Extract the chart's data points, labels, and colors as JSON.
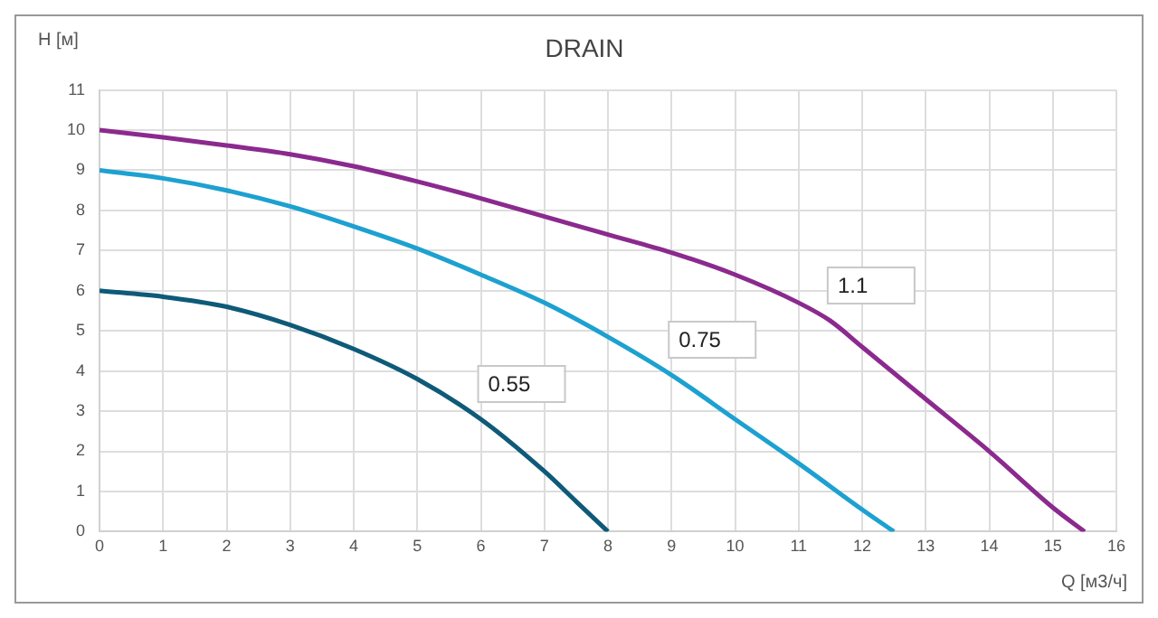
{
  "chart_data": {
    "type": "line",
    "title": "DRAIN",
    "xlabel": "Q [м3/ч]",
    "ylabel": "H [м]",
    "xlim": [
      0,
      16
    ],
    "xticks": [
      0,
      1,
      2,
      3,
      4,
      5,
      6,
      7,
      8,
      9,
      10,
      11,
      12,
      13,
      14,
      15,
      16
    ],
    "ylim": [
      0,
      11
    ],
    "yticks": [
      0,
      1,
      2,
      3,
      4,
      5,
      6,
      7,
      8,
      9,
      10,
      11
    ],
    "grid": true,
    "legend": false,
    "marker": "none",
    "series": [
      {
        "name": "0.55",
        "color": "#0e5a78",
        "x": [
          0,
          1,
          2,
          3,
          4,
          5,
          6,
          7,
          7.5,
          8
        ],
        "values": [
          6,
          5.85,
          5.6,
          5.15,
          4.55,
          3.8,
          2.8,
          1.5,
          0.75,
          0
        ]
      },
      {
        "name": "0.75",
        "color": "#1da1d0",
        "x": [
          0,
          1,
          2,
          3,
          4,
          5,
          6,
          7,
          8,
          9,
          10,
          11,
          12,
          12.5
        ],
        "values": [
          9,
          8.8,
          8.5,
          8.1,
          7.6,
          7.05,
          6.4,
          5.7,
          4.85,
          3.9,
          2.8,
          1.7,
          0.55,
          0
        ]
      },
      {
        "name": "1.1",
        "color": "#8b2a8e",
        "x": [
          0,
          1,
          2,
          3,
          4,
          5,
          6,
          7,
          8,
          9,
          10,
          11,
          11.5,
          12,
          13,
          14,
          15,
          15.5
        ],
        "values": [
          10,
          9.82,
          9.62,
          9.4,
          9.1,
          8.72,
          8.3,
          7.85,
          7.4,
          6.95,
          6.4,
          5.7,
          5.25,
          4.6,
          3.3,
          2,
          0.6,
          0
        ]
      }
    ]
  }
}
